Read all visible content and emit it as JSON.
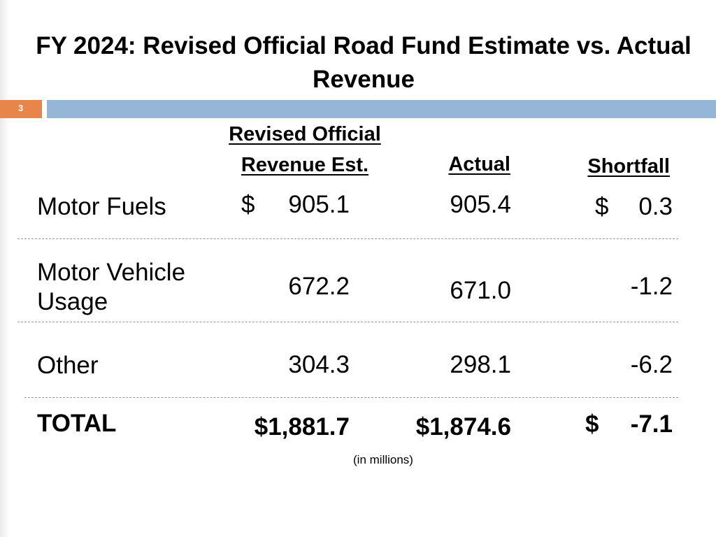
{
  "colors": {
    "accent_orange": "#e8854a",
    "accent_blue": "#95b6d6"
  },
  "slide": {
    "title": "FY 2024: Revised Official Road Fund Estimate vs. Actual Revenue",
    "number": "3"
  },
  "table": {
    "headers": {
      "estimate_line1": "Revised Official",
      "estimate_line2": "Revenue Est.",
      "actual": "Actual",
      "shortfall": "Shortfall"
    },
    "rows": [
      {
        "label": "Motor Fuels",
        "est_currency": "$",
        "estimate": "905.1",
        "actual": "905.4",
        "short_currency": "$",
        "shortfall": "0.3"
      },
      {
        "label_line1": "Motor Vehicle",
        "label_line2": "Usage",
        "estimate": "672.2",
        "actual": "671.0",
        "shortfall": "-1.2"
      },
      {
        "label": "Other",
        "estimate": "304.3",
        "actual": "298.1",
        "shortfall": "-6.2"
      }
    ],
    "total": {
      "label": "TOTAL",
      "estimate": "$1,881.7",
      "actual": "$1,874.6",
      "short_currency": "$",
      "shortfall": "-7.1"
    }
  },
  "footnote": "(in millions)"
}
